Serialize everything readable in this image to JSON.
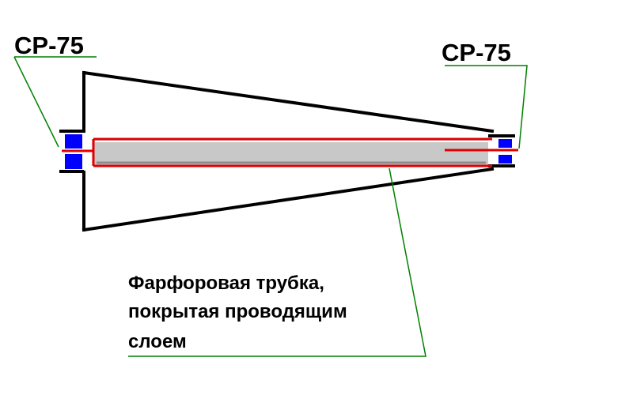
{
  "connectors": {
    "left_label": "СР-75",
    "right_label": "СР-75"
  },
  "caption": {
    "line1": "Фарфоровая трубка,",
    "line2": "покрытая проводящим",
    "line3": "слоем"
  },
  "colors": {
    "outline": "#000000",
    "tube": "#e00000",
    "tube_fill": "#c8c8c8",
    "connector": "#0000ff",
    "leader": "#008000"
  }
}
